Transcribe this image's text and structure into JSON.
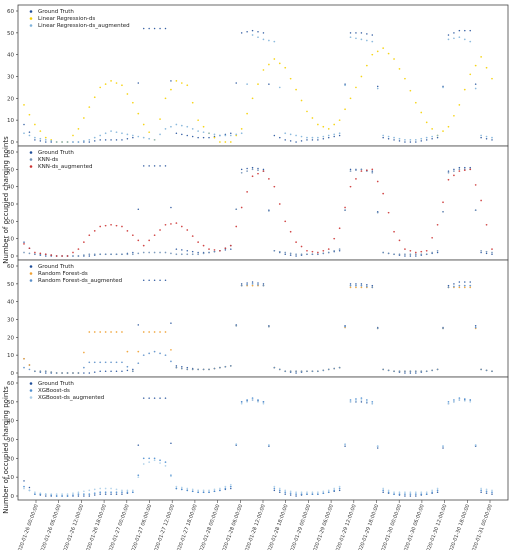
{
  "chart_data": [
    {
      "type": "scatter",
      "ylim": [
        0,
        60
      ],
      "yticks": [
        0,
        10,
        20,
        30,
        40,
        50,
        60
      ],
      "ylabel": "",
      "grid": false,
      "legend_position": "top-left",
      "series": [
        {
          "name": "Ground Truth",
          "color": "#1f4e99",
          "values": [
            8,
            1,
            0,
            0,
            0,
            0,
            0,
            1,
            1,
            1,
            2,
            52,
            52,
            52,
            4,
            3,
            2,
            2,
            3,
            4,
            50,
            51,
            50,
            3,
            1,
            0,
            1,
            1,
            2,
            3,
            50,
            50,
            49,
            2,
            1,
            0,
            0,
            1,
            2,
            49,
            51,
            51,
            2,
            1
          ]
        },
        {
          "name": "Linear Regression-ds",
          "color": "#f5d000",
          "values": [
            17,
            8,
            2,
            0,
            0,
            6,
            16,
            25,
            28,
            26,
            18,
            8,
            1,
            20,
            28,
            26,
            10,
            4,
            0,
            0,
            6,
            20,
            33,
            38,
            34,
            24,
            14,
            8,
            6,
            10,
            20,
            30,
            40,
            43,
            38,
            29,
            18,
            9,
            3,
            7,
            17,
            31,
            39,
            29
          ]
        },
        {
          "name": "Linear Regression-ds_augmented",
          "color": "#7fb2d9",
          "values": [
            4,
            2,
            1,
            0,
            0,
            0,
            1,
            3,
            5,
            4,
            3,
            2,
            1,
            6,
            8,
            7,
            5,
            4,
            3,
            3,
            4,
            49,
            47,
            46,
            4,
            3,
            2,
            2,
            3,
            4,
            48,
            47,
            46,
            3,
            2,
            1,
            1,
            2,
            3,
            47,
            48,
            46,
            3,
            2
          ]
        }
      ]
    },
    {
      "type": "scatter",
      "ylim": [
        0,
        60
      ],
      "yticks": [
        0,
        10,
        20,
        30,
        40,
        50,
        60
      ],
      "ylabel": "Number of occupied charging points",
      "grid": false,
      "legend_position": "top-left",
      "series": [
        {
          "name": "Ground Truth",
          "color": "#1f4e99",
          "values": [
            8,
            1,
            0,
            0,
            0,
            0,
            0,
            1,
            1,
            1,
            2,
            52,
            52,
            52,
            4,
            3,
            2,
            2,
            3,
            4,
            50,
            51,
            50,
            3,
            1,
            0,
            1,
            1,
            2,
            3,
            50,
            50,
            49,
            2,
            1,
            0,
            0,
            1,
            2,
            49,
            51,
            51,
            2,
            1
          ]
        },
        {
          "name": "KNN-ds",
          "color": "#6e8fb5",
          "values": [
            2,
            1,
            1,
            0,
            0,
            0,
            1,
            1,
            1,
            1,
            1,
            2,
            2,
            2,
            1,
            1,
            1,
            2,
            3,
            6,
            48,
            50,
            49,
            3,
            2,
            1,
            1,
            1,
            2,
            4,
            49,
            50,
            48,
            2,
            1,
            1,
            1,
            1,
            3,
            48,
            50,
            50,
            3,
            2
          ]
        },
        {
          "name": "KNN-ds_augmented",
          "color": "#cc3333",
          "values": [
            7,
            2,
            1,
            0,
            0,
            4,
            12,
            17,
            18,
            17,
            12,
            6,
            12,
            18,
            19,
            15,
            8,
            4,
            3,
            6,
            28,
            46,
            49,
            40,
            20,
            8,
            3,
            2,
            4,
            16,
            40,
            49,
            50,
            36,
            14,
            4,
            2,
            3,
            18,
            44,
            49,
            50,
            32,
            4
          ]
        }
      ]
    },
    {
      "type": "scatter",
      "ylim": [
        0,
        60
      ],
      "yticks": [
        0,
        10,
        20,
        30,
        40,
        50,
        60
      ],
      "ylabel": "",
      "grid": false,
      "legend_position": "top-left",
      "series": [
        {
          "name": "Ground Truth",
          "color": "#1f4e99",
          "values": [
            8,
            1,
            0,
            0,
            0,
            0,
            0,
            1,
            1,
            1,
            2,
            52,
            52,
            52,
            4,
            3,
            2,
            2,
            3,
            4,
            50,
            51,
            50,
            3,
            1,
            0,
            1,
            1,
            2,
            3,
            50,
            50,
            49,
            2,
            1,
            0,
            0,
            1,
            2,
            49,
            51,
            51,
            2,
            1
          ]
        },
        {
          "name": "Random Forest-ds",
          "color": "#f0a030",
          "values": [
            8,
            1,
            1,
            0,
            0,
            0,
            23,
            23,
            23,
            23,
            1,
            23,
            23,
            23,
            3,
            2,
            2,
            2,
            3,
            4,
            49,
            49,
            49,
            3,
            1,
            1,
            1,
            1,
            2,
            3,
            48,
            48,
            48,
            2,
            1,
            1,
            1,
            1,
            2,
            48,
            48,
            48,
            2,
            1
          ]
        },
        {
          "name": "Random Forest-ds_augmented",
          "color": "#5b8fc9",
          "values": [
            3,
            1,
            1,
            0,
            0,
            0,
            6,
            6,
            6,
            6,
            1,
            10,
            12,
            10,
            3,
            2,
            2,
            2,
            3,
            4,
            49,
            50,
            49,
            3,
            1,
            1,
            1,
            1,
            2,
            3,
            49,
            49,
            48,
            2,
            1,
            1,
            1,
            1,
            2,
            48,
            49,
            49,
            2,
            1
          ]
        }
      ]
    },
    {
      "type": "scatter",
      "ylim": [
        0,
        60
      ],
      "yticks": [
        0,
        10,
        20,
        30,
        40,
        50,
        60
      ],
      "ylabel": "Number of occupied charging points",
      "grid": false,
      "legend_position": "top-left",
      "xtick_labels": [
        "2020-01-26 00:00:00",
        "2020-01-26 06:00:00",
        "2020-01-26 12:00:00",
        "2020-01-26 18:00:00",
        "2020-01-27 00:00:00",
        "2020-01-27 06:00:00",
        "2020-01-27 12:00:00",
        "2020-01-27 18:00:00",
        "2020-01-28 00:00:00",
        "2020-01-28 06:00:00",
        "2020-01-28 12:00:00",
        "2020-01-28 18:00:00",
        "2020-01-29 00:00:00",
        "2020-01-29 06:00:00",
        "2020-01-29 12:00:00",
        "2020-01-29 18:00:00",
        "2020-01-30 00:00:00",
        "2020-01-30 06:00:00",
        "2020-01-30 12:00:00",
        "2020-01-30 18:00:00",
        "2020-01-31 00:00:00"
      ],
      "series": [
        {
          "name": "Ground Truth",
          "color": "#1f4e99",
          "values": [
            8,
            1,
            0,
            0,
            0,
            0,
            0,
            1,
            1,
            1,
            2,
            52,
            52,
            52,
            4,
            3,
            2,
            2,
            3,
            4,
            50,
            51,
            50,
            3,
            1,
            0,
            1,
            1,
            2,
            3,
            50,
            50,
            49,
            2,
            1,
            0,
            0,
            1,
            2,
            49,
            51,
            51,
            2,
            1
          ]
        },
        {
          "name": "XGBoost-ds",
          "color": "#4f8fd0",
          "values": [
            5,
            1,
            1,
            0,
            0,
            1,
            1,
            2,
            2,
            2,
            2,
            20,
            20,
            18,
            4,
            3,
            2,
            2,
            3,
            5,
            50,
            52,
            50,
            4,
            2,
            1,
            1,
            1,
            2,
            4,
            51,
            52,
            50,
            3,
            1,
            1,
            1,
            1,
            3,
            50,
            52,
            51,
            3,
            2
          ]
        },
        {
          "name": "XGBoost-ds_augmented",
          "color": "#a9cde8",
          "values": [
            4,
            2,
            1,
            1,
            1,
            2,
            3,
            4,
            4,
            3,
            3,
            17,
            19,
            16,
            5,
            4,
            3,
            3,
            4,
            6,
            49,
            51,
            49,
            5,
            3,
            2,
            2,
            2,
            3,
            5,
            50,
            51,
            49,
            4,
            2,
            2,
            2,
            2,
            4,
            49,
            51,
            50,
            4,
            3
          ]
        }
      ]
    }
  ]
}
